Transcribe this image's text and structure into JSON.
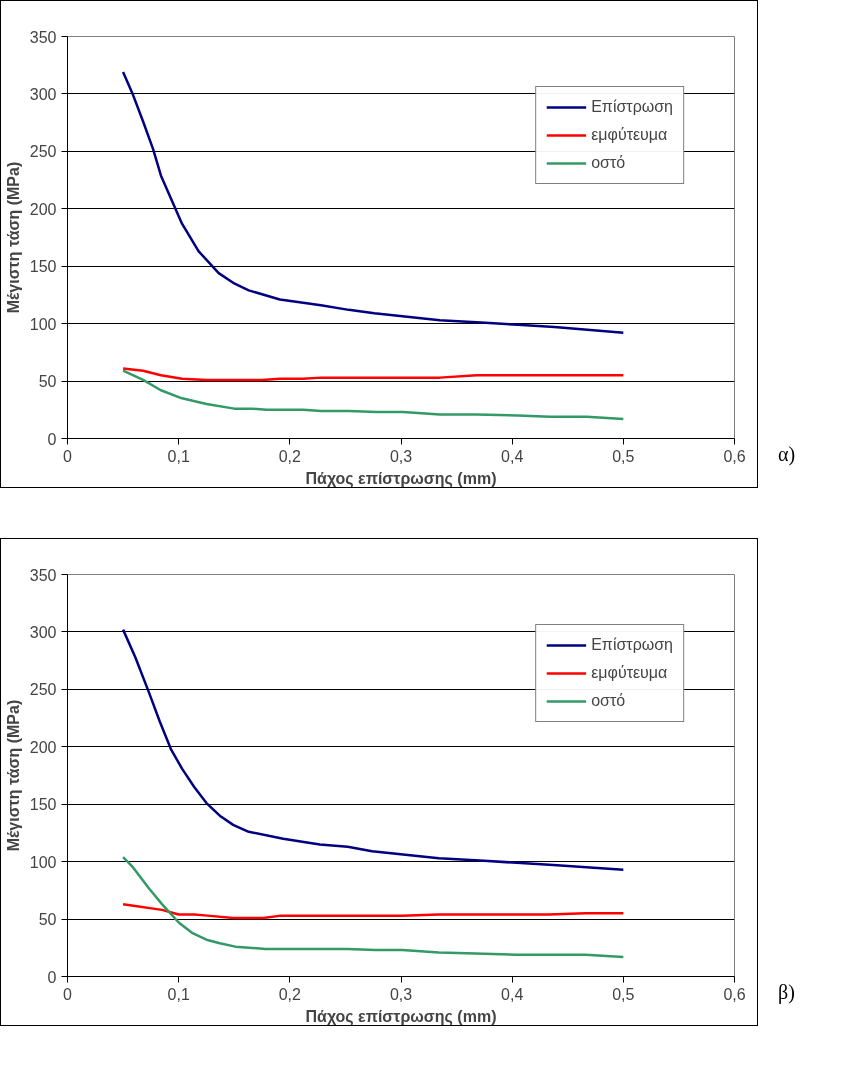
{
  "chart_data": [
    {
      "type": "line",
      "xlabel": "Πάχος επίστρωσης (mm)",
      "ylabel": "Μέγιστη τάση (MPa)",
      "annotations": [
        "α)"
      ],
      "xlim": [
        0,
        0.6
      ],
      "ylim": [
        0,
        350
      ],
      "xticks": [
        0,
        {
          "value": 0.1,
          "label": "0,1"
        },
        {
          "value": 0.2,
          "label": "0,2"
        },
        {
          "value": 0.3,
          "label": "0,3"
        },
        {
          "value": 0.4,
          "label": "0,4"
        },
        {
          "value": 0.5,
          "label": "0,5"
        },
        {
          "value": 0.6,
          "label": "0,6"
        }
      ],
      "yticks": [
        0,
        50,
        100,
        150,
        200,
        250,
        300,
        350
      ],
      "grid": "y",
      "legend": "top right",
      "marker": "none",
      "line_style": "solid",
      "series": [
        {
          "name": "Επίστρωση",
          "color": "#000080",
          "x": [
            0.05,
            0.059,
            0.068,
            0.077,
            0.084,
            0.103,
            0.118,
            0.136,
            0.15,
            0.163,
            0.191,
            0.228,
            0.253,
            0.276,
            0.335,
            0.372,
            0.405,
            0.438,
            0.5
          ],
          "values": [
            319,
            299,
            276,
            252,
            229,
            187,
            163,
            144,
            135,
            129,
            121,
            116,
            112,
            109,
            103,
            101,
            99,
            97,
            92
          ]
        },
        {
          "name": "εμφύτευμα",
          "color": "#ff0000",
          "x": [
            0.05,
            0.068,
            0.084,
            0.103,
            0.125,
            0.175,
            0.191,
            0.212,
            0.228,
            0.335,
            0.368,
            0.5
          ],
          "values": [
            61,
            59,
            55,
            52,
            51,
            51,
            52,
            52,
            53,
            53,
            55,
            55
          ]
        },
        {
          "name": "οστό",
          "color": "#339966",
          "x": [
            0.05,
            0.068,
            0.084,
            0.103,
            0.125,
            0.15,
            0.166,
            0.179,
            0.212,
            0.228,
            0.253,
            0.278,
            0.302,
            0.335,
            0.368,
            0.405,
            0.434,
            0.467,
            0.5
          ],
          "values": [
            59,
            51,
            42,
            35,
            30,
            26,
            26,
            25,
            25,
            24,
            24,
            23,
            23,
            21,
            21,
            20,
            19,
            19,
            17
          ]
        }
      ]
    },
    {
      "type": "line",
      "xlabel": "Πάχος επίστρωσης (mm)",
      "ylabel": "Μέγιστη τάση (MPa)",
      "annotations": [
        "β)"
      ],
      "xlim": [
        0,
        0.6
      ],
      "ylim": [
        0,
        350
      ],
      "xticks": [
        0,
        {
          "value": 0.1,
          "label": "0,1"
        },
        {
          "value": 0.2,
          "label": "0,2"
        },
        {
          "value": 0.3,
          "label": "0,3"
        },
        {
          "value": 0.4,
          "label": "0,4"
        },
        {
          "value": 0.5,
          "label": "0,5"
        },
        {
          "value": 0.6,
          "label": "0,6"
        }
      ],
      "yticks": [
        0,
        50,
        100,
        150,
        200,
        250,
        300,
        350
      ],
      "grid": "y",
      "legend": "top right",
      "marker": "none",
      "line_style": "solid",
      "series": [
        {
          "name": "Επίστρωση",
          "color": "#000080",
          "x": [
            0.05,
            0.061,
            0.073,
            0.083,
            0.093,
            0.103,
            0.114,
            0.125,
            0.137,
            0.149,
            0.163,
            0.194,
            0.227,
            0.252,
            0.274,
            0.334,
            0.371,
            0.404,
            0.437,
            0.5
          ],
          "values": [
            302,
            278,
            248,
            222,
            198,
            181,
            165,
            151,
            140,
            132,
            126,
            120,
            115,
            113,
            109,
            103,
            101,
            99,
            97,
            93
          ]
        },
        {
          "name": "εμφύτευμα",
          "color": "#ff0000",
          "x": [
            0.05,
            0.085,
            0.1,
            0.114,
            0.126,
            0.149,
            0.176,
            0.192,
            0.301,
            0.334,
            0.433,
            0.466,
            0.5
          ],
          "values": [
            63,
            58,
            54,
            54,
            53,
            51,
            51,
            53,
            53,
            54,
            54,
            55,
            55
          ]
        },
        {
          "name": "οστό",
          "color": "#339966",
          "x": [
            0.05,
            0.059,
            0.073,
            0.085,
            0.1,
            0.112,
            0.125,
            0.137,
            0.151,
            0.178,
            0.252,
            0.277,
            0.301,
            0.334,
            0.367,
            0.404,
            0.466,
            0.5
          ],
          "values": [
            104,
            95,
            77,
            63,
            47,
            38,
            32,
            29,
            26,
            24,
            24,
            23,
            23,
            21,
            20,
            19,
            19,
            17
          ]
        }
      ]
    }
  ]
}
